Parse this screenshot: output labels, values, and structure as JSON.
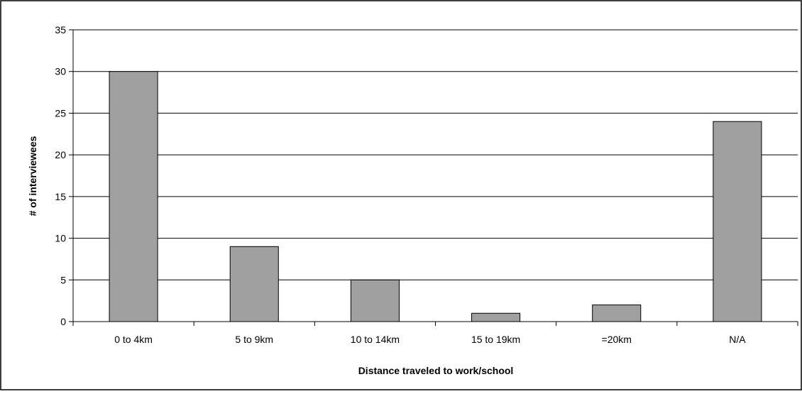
{
  "chart_data": {
    "type": "bar",
    "categories": [
      "0 to 4km",
      "5 to 9km",
      "10 to 14km",
      "15 to 19km",
      "=20km",
      "N/A"
    ],
    "values": [
      30,
      9,
      5,
      1,
      2,
      24
    ],
    "xlabel": "Distance traveled to work/school",
    "ylabel": "# of interviewees",
    "ylim": [
      0,
      35
    ],
    "yticks": [
      0,
      5,
      10,
      15,
      20,
      25,
      30,
      35
    ],
    "grid": true,
    "bar_color": "#a0a0a0",
    "bar_edge_color": "#000000"
  }
}
